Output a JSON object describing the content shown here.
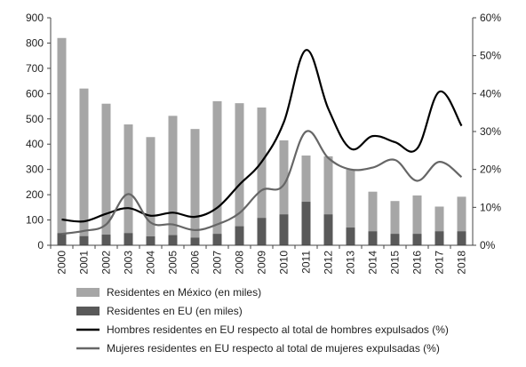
{
  "chart_data": {
    "type": "bar+line",
    "categories": [
      "2000",
      "2001",
      "2002",
      "2003",
      "2004",
      "2005",
      "2006",
      "2007",
      "2008",
      "2009",
      "2010",
      "2011",
      "2012",
      "2013",
      "2014",
      "2015",
      "2016",
      "2017",
      "2018"
    ],
    "series": [
      {
        "name": "Residentes en México (en miles)",
        "kind": "bar",
        "axis": "left",
        "color": "#a6a6a6",
        "values": [
          820,
          620,
          560,
          478,
          428,
          512,
          460,
          570,
          562,
          545,
          415,
          355,
          352,
          300,
          212,
          175,
          197,
          153,
          192
        ]
      },
      {
        "name": "Residentes en EU (en miles)",
        "kind": "bar",
        "axis": "left",
        "color": "#595959",
        "values": [
          48,
          36,
          42,
          48,
          35,
          40,
          30,
          45,
          75,
          108,
          122,
          172,
          122,
          70,
          55,
          45,
          45,
          55,
          55
        ]
      },
      {
        "name": "Hombres residentes en EU respecto al total de hombres expulsados (%)",
        "kind": "line",
        "axis": "right",
        "color": "#000000",
        "values": [
          6.8,
          6.3,
          8.3,
          9.8,
          7.8,
          8.6,
          7.5,
          9.9,
          16.0,
          22.0,
          32.5,
          51.5,
          36.0,
          25.5,
          28.8,
          27.2,
          25.5,
          40.5,
          31.5
        ]
      },
      {
        "name": "Mujeres residentes en EU respecto al total de mujeres expulsadas (%)",
        "kind": "line",
        "axis": "right",
        "color": "#666666",
        "values": [
          3.0,
          3.8,
          5.5,
          13.5,
          6.0,
          5.5,
          4.0,
          5.5,
          8.5,
          14.5,
          16.0,
          30.0,
          23.0,
          20.0,
          20.5,
          22.5,
          17.0,
          22.0,
          18.0
        ]
      }
    ],
    "left_axis": {
      "ylim": [
        0,
        900
      ],
      "ticks": [
        "0",
        "100",
        "200",
        "300",
        "400",
        "500",
        "600",
        "700",
        "800",
        "900"
      ]
    },
    "right_axis": {
      "ylim": [
        0,
        60
      ],
      "ticks": [
        "0%",
        "10%",
        "20%",
        "30%",
        "40%",
        "50%",
        "60%"
      ]
    },
    "grid": false,
    "legend_position": "bottom"
  }
}
